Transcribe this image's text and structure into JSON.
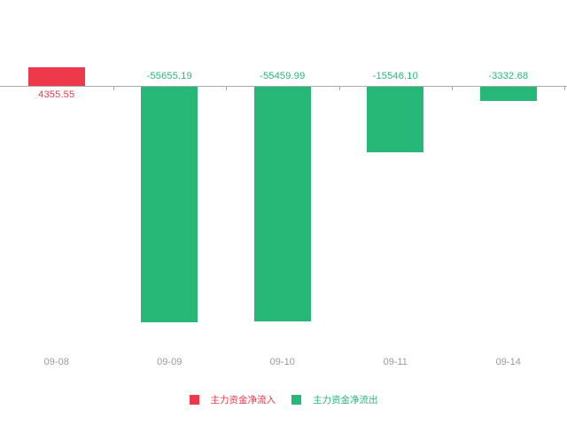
{
  "chart_data": {
    "type": "bar",
    "title": "",
    "xlabel": "",
    "ylabel": "",
    "categories": [
      "09-08",
      "09-09",
      "09-10",
      "09-11",
      "09-14"
    ],
    "values": [
      4355.55,
      -55655.19,
      -55459.99,
      -15546.1,
      -3332.68
    ],
    "labels": [
      "4355.55",
      "-55655.19",
      "-55459.99",
      "-15546.10",
      "-3332.68"
    ],
    "ylim": [
      -58000,
      6000
    ],
    "grid": false,
    "legend_position": "bottom",
    "colors": {
      "positive": "#ee394b",
      "negative": "#25b877",
      "axis": "#ababab",
      "x_tick_label": "#9b9b9b"
    },
    "legend": [
      {
        "label": "主力资金净流入",
        "color": "#ee394b"
      },
      {
        "label": "主力资金净流出",
        "color": "#25b877"
      }
    ]
  }
}
